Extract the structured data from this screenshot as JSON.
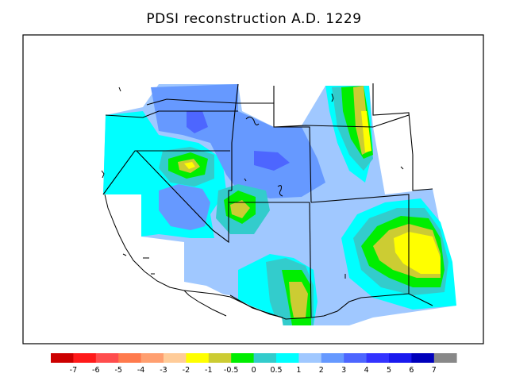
{
  "title": "PDSI reconstruction A.D. 1229",
  "legend": {
    "colors": [
      "#cc0000",
      "#ff1a1a",
      "#ff4d4d",
      "#ff7a4d",
      "#ff9f70",
      "#ffcc99",
      "#ffff00",
      "#cccc33",
      "#00ee00",
      "#33cccc",
      "#00ffff",
      "#a0c8ff",
      "#6699ff",
      "#4d66ff",
      "#3333ff",
      "#1a1aee",
      "#0000bb",
      "#888888"
    ],
    "labels": [
      "-7",
      "-6",
      "-5",
      "-4",
      "-3",
      "-2",
      "-1",
      "-0.5",
      "0",
      "0.5",
      "1",
      "2",
      "3",
      "4",
      "5",
      "6",
      "7"
    ]
  }
}
